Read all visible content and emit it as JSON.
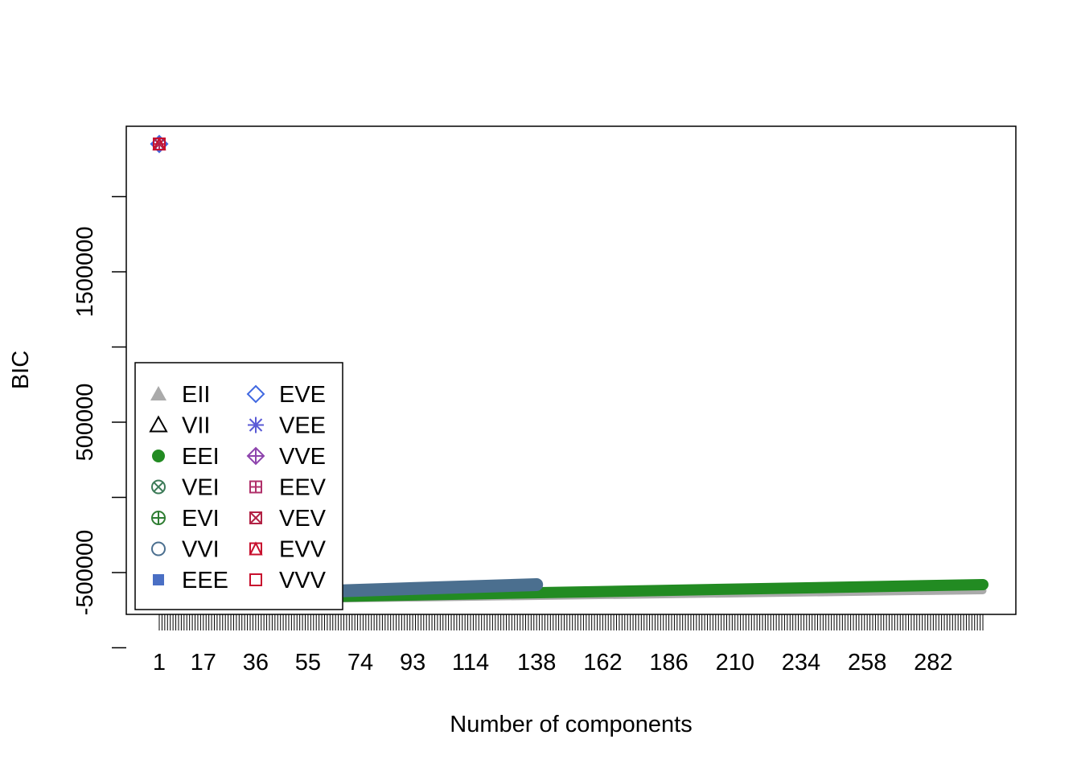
{
  "chart_data": {
    "type": "scatter",
    "title": "",
    "xlabel": "Number of components",
    "ylabel": "BIC",
    "x_tick_labels": [
      "1",
      "17",
      "36",
      "55",
      "74",
      "93",
      "114",
      "138",
      "162",
      "186",
      "210",
      "234",
      "258",
      "282"
    ],
    "y_tick_labels": [
      "-500000",
      "500000",
      "1500000"
    ],
    "y_tick_values": [
      -1000000,
      -500000,
      0,
      500000,
      1000000,
      1500000,
      2000000
    ],
    "xlim": [
      1,
      300
    ],
    "ylim": [
      -750000,
      2450000
    ],
    "legend": {
      "position": "bottom-left",
      "entries": [
        {
          "label": "EII",
          "color": "#aaaaaa",
          "symbol": "filled-triangle"
        },
        {
          "label": "VII",
          "color": "#000000",
          "symbol": "open-triangle"
        },
        {
          "label": "EEI",
          "color": "#228b22",
          "symbol": "filled-circle"
        },
        {
          "label": "VEI",
          "color": "#3b7a57",
          "symbol": "circle-x"
        },
        {
          "label": "EVI",
          "color": "#2e7d32",
          "symbol": "circle-plus"
        },
        {
          "label": "VVI",
          "color": "#4b6f8f",
          "symbol": "open-circle"
        },
        {
          "label": "EEE",
          "color": "#4a6fc4",
          "symbol": "filled-square"
        },
        {
          "label": "EVE",
          "color": "#4169e1",
          "symbol": "open-diamond"
        },
        {
          "label": "VEE",
          "color": "#5a5ad6",
          "symbol": "asterisk"
        },
        {
          "label": "VVE",
          "color": "#8e44ad",
          "symbol": "diamond-plus"
        },
        {
          "label": "EEV",
          "color": "#b0306a",
          "symbol": "square-plus"
        },
        {
          "label": "VEV",
          "color": "#b22245",
          "symbol": "square-x"
        },
        {
          "label": "EVV",
          "color": "#c8102e",
          "symbol": "square-triangle"
        },
        {
          "label": "VVV",
          "color": "#c8102e",
          "symbol": "open-square"
        }
      ]
    },
    "series": [
      {
        "name": "EII",
        "x_range": [
          1,
          300
        ],
        "y_start": -690000,
        "y_end": -620000
      },
      {
        "name": "EEI",
        "x_range": [
          1,
          300
        ],
        "y_start": -680000,
        "y_end": -580000
      },
      {
        "name": "VVI",
        "x_range": [
          1,
          138
        ],
        "y_start": -660000,
        "y_end": -580000
      }
    ],
    "outlier_points": [
      {
        "x": 1,
        "y": 2350000
      }
    ]
  }
}
